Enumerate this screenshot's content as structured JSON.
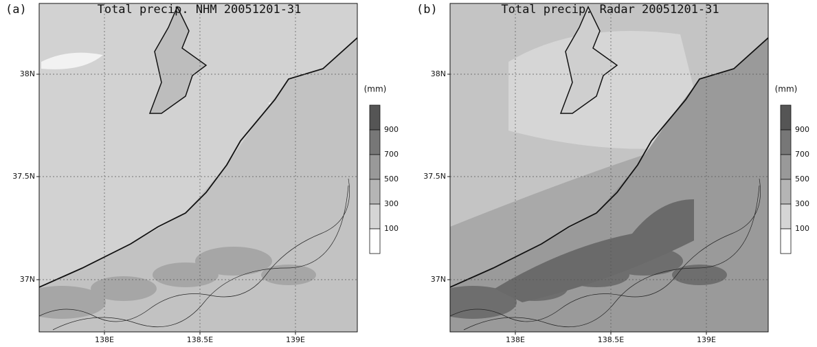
{
  "panels": [
    {
      "label": "(a)",
      "title": "Total precip. NHM 20051201-31",
      "x_tick_labels": [
        "138E",
        "138.5E",
        "139E"
      ],
      "y_tick_labels": [
        "38N",
        "37.5N",
        "37N"
      ],
      "colorbar": {
        "unit": "(mm)",
        "tick_labels": [
          900,
          700,
          500,
          300,
          100
        ]
      }
    },
    {
      "label": "(b)",
      "title": "Total precip. Radar 20051201-31",
      "x_tick_labels": [
        "138E",
        "138.5E",
        "139E"
      ],
      "y_tick_labels": [
        "38N",
        "37.5N",
        "37N"
      ],
      "colorbar": {
        "unit": "(mm)",
        "tick_labels": [
          900,
          700,
          500,
          300,
          100
        ]
      }
    }
  ]
}
